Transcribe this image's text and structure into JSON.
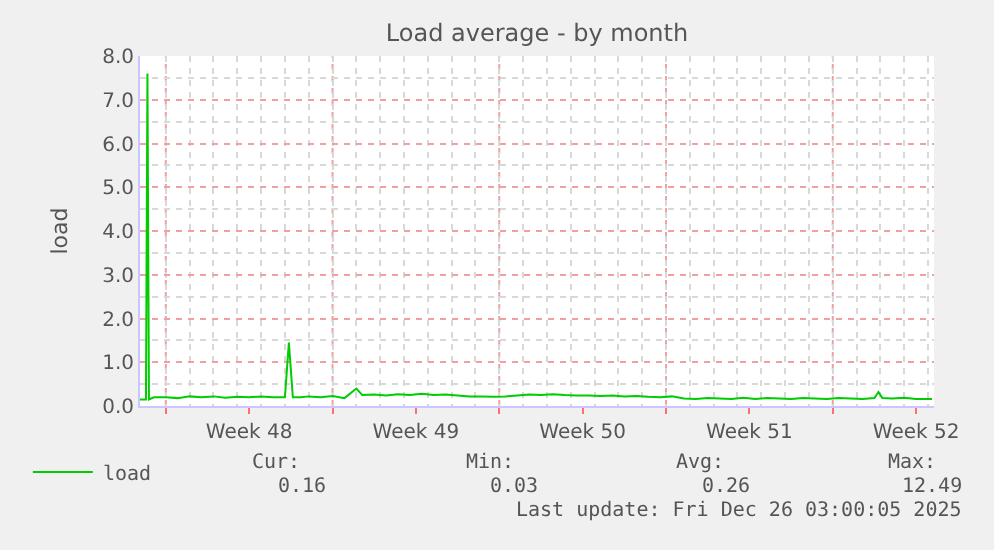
{
  "chart_data": {
    "type": "line",
    "title": "Load average - by month",
    "ylabel": "load",
    "x": [
      "2025-11-22T22:00",
      "2025-11-23T00:00",
      "2025-11-23T04:00",
      "2025-11-23T05:30",
      "2025-11-23T07:00",
      "2025-11-23T12:00",
      "2025-11-24T00:00",
      "2025-11-24T12:00",
      "2025-11-25T00:00",
      "2025-11-25T12:00",
      "2025-11-26T00:00",
      "2025-11-26T12:00",
      "2025-11-27T00:00",
      "2025-11-27T12:00",
      "2025-11-28T00:00",
      "2025-11-28T12:00",
      "2025-11-29T00:00",
      "2025-11-29T04:00",
      "2025-11-29T08:00",
      "2025-11-29T16:00",
      "2025-11-30T00:00",
      "2025-11-30T12:00",
      "2025-12-01T00:00",
      "2025-12-01T12:00",
      "2025-12-02T00:00",
      "2025-12-02T06:00",
      "2025-12-02T18:00",
      "2025-12-03T06:00",
      "2025-12-03T18:00",
      "2025-12-04T06:00",
      "2025-12-04T18:00",
      "2025-12-05T06:00",
      "2025-12-05T18:00",
      "2025-12-06T06:00",
      "2025-12-06T18:00",
      "2025-12-07T06:00",
      "2025-12-07T18:00",
      "2025-12-08T06:00",
      "2025-12-08T18:00",
      "2025-12-09T06:00",
      "2025-12-09T18:00",
      "2025-12-10T06:00",
      "2025-12-10T18:00",
      "2025-12-11T06:00",
      "2025-12-11T18:00",
      "2025-12-12T06:00",
      "2025-12-12T18:00",
      "2025-12-13T06:00",
      "2025-12-13T18:00",
      "2025-12-14T06:00",
      "2025-12-14T18:00",
      "2025-12-15T06:00",
      "2025-12-15T18:00",
      "2025-12-16T06:00",
      "2025-12-16T18:00",
      "2025-12-17T06:00",
      "2025-12-17T18:00",
      "2025-12-18T06:00",
      "2025-12-18T18:00",
      "2025-12-19T06:00",
      "2025-12-19T18:00",
      "2025-12-20T06:00",
      "2025-12-20T18:00",
      "2025-12-21T06:00",
      "2025-12-21T18:00",
      "2025-12-22T06:00",
      "2025-12-22T18:00",
      "2025-12-23T06:00",
      "2025-12-23T18:00",
      "2025-12-23T22:00",
      "2025-12-24T02:00",
      "2025-12-24T12:00",
      "2025-12-25T00:00",
      "2025-12-25T12:00",
      "2025-12-26T04:00"
    ],
    "series": [
      {
        "name": "load",
        "color": "#00cc00",
        "values": [
          0.15,
          0.15,
          0.15,
          7.6,
          0.15,
          0.2,
          0.2,
          0.18,
          0.22,
          0.2,
          0.22,
          0.19,
          0.21,
          0.2,
          0.22,
          0.2,
          0.2,
          1.45,
          0.2,
          0.2,
          0.22,
          0.2,
          0.23,
          0.18,
          0.4,
          0.25,
          0.26,
          0.24,
          0.27,
          0.25,
          0.28,
          0.25,
          0.26,
          0.24,
          0.22,
          0.22,
          0.21,
          0.22,
          0.24,
          0.26,
          0.25,
          0.27,
          0.25,
          0.24,
          0.24,
          0.23,
          0.24,
          0.22,
          0.23,
          0.21,
          0.2,
          0.22,
          0.17,
          0.16,
          0.18,
          0.17,
          0.16,
          0.19,
          0.16,
          0.18,
          0.17,
          0.16,
          0.18,
          0.17,
          0.16,
          0.18,
          0.17,
          0.16,
          0.18,
          0.32,
          0.18,
          0.17,
          0.19,
          0.16,
          0.16
        ]
      }
    ],
    "xlim": [
      "2025-11-22T22:00",
      "2025-12-26T06:00"
    ],
    "xticks": [
      {
        "value": "2025-11-24",
        "label": null
      },
      {
        "value": "2025-11-27T12:00",
        "label": "Week 48"
      },
      {
        "value": "2025-12-01",
        "label": null
      },
      {
        "value": "2025-12-04T12:00",
        "label": "Week 49"
      },
      {
        "value": "2025-12-08",
        "label": null
      },
      {
        "value": "2025-12-11T12:00",
        "label": "Week 50"
      },
      {
        "value": "2025-12-15",
        "label": null
      },
      {
        "value": "2025-12-18T12:00",
        "label": "Week 51"
      },
      {
        "value": "2025-12-22",
        "label": null
      },
      {
        "value": "2025-12-25T12:00",
        "label": "Week 52"
      }
    ],
    "ylim": [
      0,
      8
    ],
    "yticks": [
      {
        "value": 0,
        "label": "0.0"
      },
      {
        "value": 1,
        "label": "1.0"
      },
      {
        "value": 2,
        "label": "2.0"
      },
      {
        "value": 3,
        "label": "3.0"
      },
      {
        "value": 4,
        "label": "4.0"
      },
      {
        "value": 5,
        "label": "5.0"
      },
      {
        "value": 6,
        "label": "6.0"
      },
      {
        "value": 7,
        "label": "7.0"
      },
      {
        "value": 8,
        "label": "8.0"
      }
    ],
    "grid": true,
    "legend": "bottom left",
    "marker": "none",
    "line_style": "solid",
    "annotations": [
      "Cur:",
      "Min:",
      "Avg:",
      "Max:",
      "0.16",
      "0.03",
      "0.26",
      "12.49",
      "Last update: Fri Dec 26 03:00:05 2025"
    ]
  }
}
